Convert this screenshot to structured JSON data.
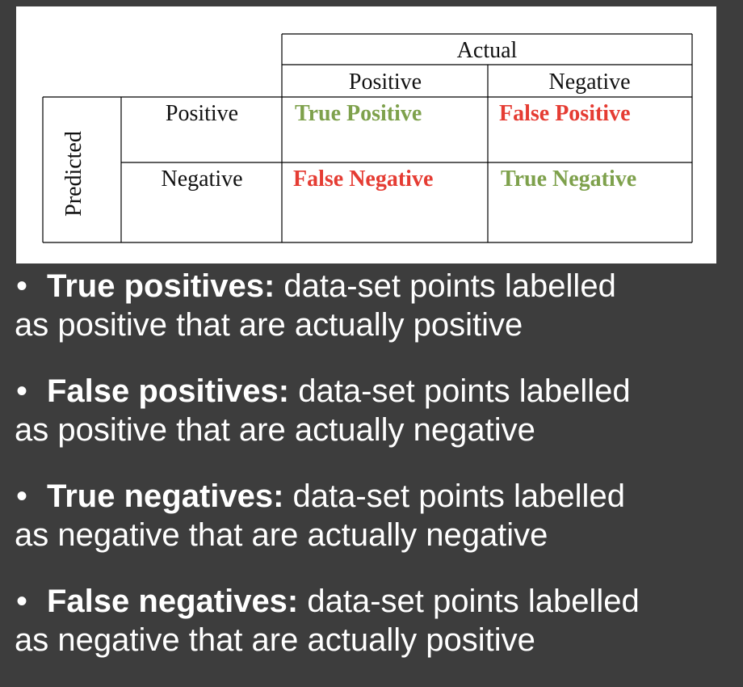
{
  "matrix": {
    "actual_header": "Actual",
    "predicted_header": "Predicted",
    "col_positive": "Positive",
    "col_negative": "Negative",
    "row_positive": "Positive",
    "row_negative": "Negative",
    "cells": {
      "tp": "True Positive",
      "fp": "False Positive",
      "fn": "False Negative",
      "tn": "True Negative"
    },
    "colors": {
      "true": "#7ea14c",
      "false": "#e53c33"
    }
  },
  "bullets": [
    {
      "term": "True positives:",
      "line1": " data-set points labelled",
      "line2": "as positive that are actually positive"
    },
    {
      "term": "False positives:",
      "line1": " data-set points labelled",
      "line2": "as positive that are actually negative"
    },
    {
      "term": "True negatives:",
      "line1": " data-set points labelled",
      "line2": "as negative that are actually negative"
    },
    {
      "term": "False negatives:",
      "line1": " data-set points labelled",
      "line2": "as negative that are actually positive"
    }
  ],
  "bullet_symbol": "•"
}
